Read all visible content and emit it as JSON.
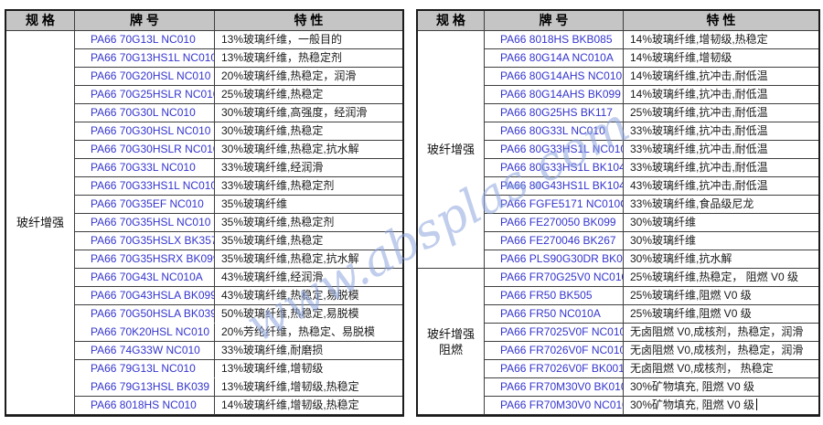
{
  "colors": {
    "header_bg": "#C5C5C5",
    "grade_text": "#3434CE",
    "feature_text": "#1A1A1A",
    "border": "#3F3F3F",
    "outer_border": "#1B1B1B",
    "watermark": "#8EA6DD"
  },
  "watermark": {
    "text": "www.absplas.com"
  },
  "tables": [
    {
      "name": "pa66-grades-table-left",
      "headers": [
        "规 格",
        "牌 号",
        "特 性"
      ],
      "groups": [
        {
          "spec": "玻纤增强",
          "rows": [
            {
              "grade": "PA66 70G13L NC010",
              "feature": "13%玻璃纤维，一般目的"
            },
            {
              "grade": "PA66 70G13HS1L NC010",
              "feature": "13%玻璃纤维，热稳定剂"
            },
            {
              "grade": "PA66 70G20HSL NC010",
              "feature": "20%玻璃纤维,热稳定，润滑"
            },
            {
              "grade": "PA66 70G25HSLR NC010",
              "feature": "25%玻璃纤维,热稳定"
            },
            {
              "grade": "PA66 70G30L NC010",
              "feature": "30%玻璃纤维,高强度，经润滑"
            },
            {
              "grade": "PA66 70G30HSL NC010",
              "feature": "30%玻璃纤维,热稳定"
            },
            {
              "grade": "PA66 70G30HSLR NC010",
              "feature": "30%玻璃纤维,热稳定,抗水解"
            },
            {
              "grade": "PA66 70G33L NC010",
              "feature": "33%玻璃纤维,经润滑"
            },
            {
              "grade": "PA66 70G33HS1L NC010",
              "feature": "33%玻璃纤维,热稳定剂"
            },
            {
              "grade": "PA66 70G35EF NC010",
              "feature": "35%玻璃纤维"
            },
            {
              "grade": "PA66 70G35HSL NC010",
              "feature": "35%玻璃纤维,热稳定剂"
            },
            {
              "grade": "PA66 70G35HSLX BK357",
              "feature": "35%玻璃纤维,热稳定"
            },
            {
              "grade": "PA66 70G35HSRX BK099",
              "feature": "35%玻璃纤维,热稳定,抗水解"
            },
            {
              "grade": "PA66 70G43L NC010A",
              "feature": "43%玻璃纤维,经润滑"
            },
            {
              "grade": "PA66 70G43HSLA BK099",
              "feature": "43%玻璃纤维,热稳定,易脱模"
            },
            {
              "grade": "PA66 70G50HSLA BK039B",
              "feature": "50%玻璃纤维,热稳定,易脱模",
              "no_divider_below": true
            },
            {
              "grade": "PA66 70K20HSL NC010",
              "feature": "20%芳纶纤维，热稳定、易脱模"
            },
            {
              "grade": "PA66 74G33W NC010",
              "feature": "33%玻璃纤维,耐磨损"
            },
            {
              "grade": "PA66 79G13L NC010",
              "feature": "13%玻璃纤维,增韧级",
              "no_divider_below": true
            },
            {
              "grade": "PA66 79G13HSL BK039",
              "feature": "13%玻璃纤维,增韧级,热稳定"
            },
            {
              "grade": "PA66 8018HS NC010",
              "feature": "14%玻璃纤维,增韧级,热稳定"
            }
          ]
        }
      ]
    },
    {
      "name": "pa66-grades-table-right",
      "headers": [
        "规 格",
        "牌 号",
        "特 性"
      ],
      "groups": [
        {
          "spec": "玻纤增强",
          "rows": [
            {
              "grade": "PA66 8018HS BKB085",
              "feature": "14%玻璃纤维,增韧级,热稳定"
            },
            {
              "grade": "PA66 80G14A NC010A",
              "feature": "14%玻璃纤维,增韧级"
            },
            {
              "grade": "PA66 80G14AHS NC010",
              "feature": "14%玻璃纤维,抗冲击,耐低温"
            },
            {
              "grade": "PA66 80G14AHS BK099",
              "feature": "14%玻璃纤维,抗冲击,耐低温"
            },
            {
              "grade": "PA66 80G25HS BK117",
              "feature": "25%玻璃纤维,抗冲击,耐低温"
            },
            {
              "grade": "PA66 80G33L NC010",
              "feature": "33%玻璃纤维,抗冲击,耐低温"
            },
            {
              "grade": "PA66 80G33HS1L NC010",
              "feature": "33%玻璃纤维,抗冲击,耐低温"
            },
            {
              "grade": "PA66 80G33HS1L BK104",
              "feature": "33%玻璃纤维,抗冲击,耐低温"
            },
            {
              "grade": "PA66 80G43HS1L BK104",
              "feature": "43%玻璃纤维,抗冲击,耐低温"
            },
            {
              "grade": "PA66 FGFE5171 NC010C",
              "feature": "33%玻璃纤维,食品级尼龙"
            },
            {
              "grade": "PA66 FE270050 BK099",
              "feature": "30%玻璃纤维"
            },
            {
              "grade": "PA66 FE270046 BK267",
              "feature": "30%玻璃纤维"
            },
            {
              "grade": "PA66 PLS90G30DR BK099",
              "feature": "30%玻璃纤维,抗水解"
            }
          ]
        },
        {
          "spec": "玻纤增强\n阻燃",
          "rows": [
            {
              "grade": "PA66 FR70G25V0 NC010",
              "feature": "25%玻璃纤维,热稳定， 阻燃 V0 级"
            },
            {
              "grade": "PA66 FR50 BK505",
              "feature": "25%玻璃纤维,阻燃 V0 级"
            },
            {
              "grade": "PA66 FR50 NC010A",
              "feature": "25%玻璃纤维,阻燃 V0 级"
            },
            {
              "grade": "PA66 FR7025V0F NC010",
              "feature": "无卤阻燃 V0,成核剂，热稳定，润滑"
            },
            {
              "grade": "PA66 FR7026V0F NC010",
              "feature": "无卤阻燃 V0,成核剂，热稳定，润滑"
            },
            {
              "grade": "PA66 FR7026V0F BK001",
              "feature": "无卤阻燃 V0,成核剂， 热稳定"
            },
            {
              "grade": "PA66 FR70M30V0 BK010",
              "feature": "30%矿物填充, 阻燃 V0 级"
            },
            {
              "grade": "PA66 FR70M30V0 NC010",
              "feature": "30%矿物填充, 阻燃 V0 级",
              "text_cursor": true
            }
          ]
        }
      ]
    }
  ]
}
